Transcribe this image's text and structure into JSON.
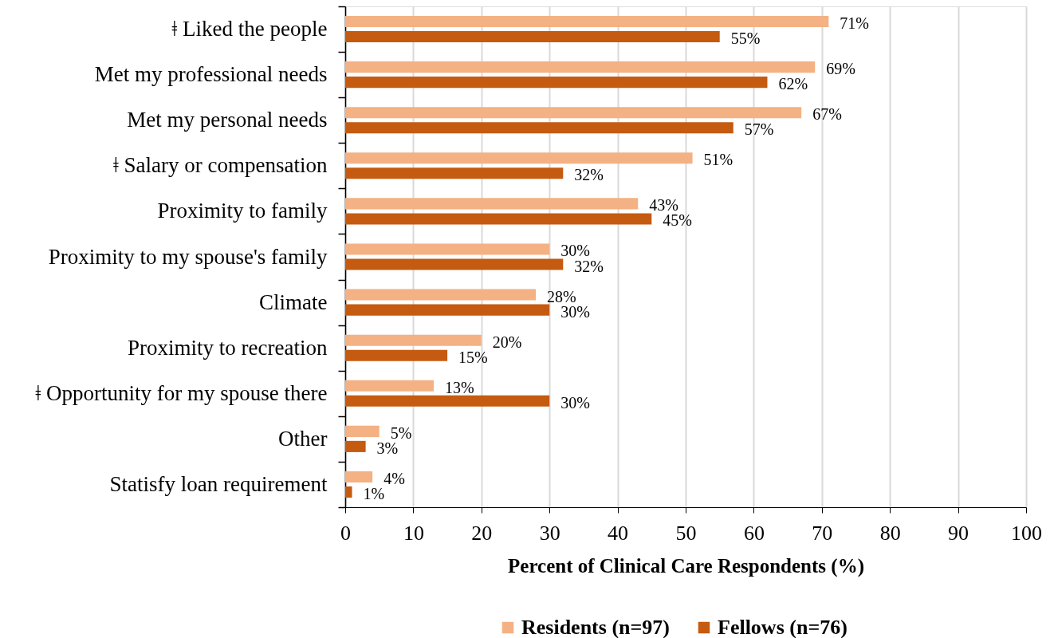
{
  "chart_data": {
    "type": "bar",
    "orientation": "horizontal",
    "categories": [
      "ǂ Liked the people",
      "Met my professional needs",
      "Met my personal needs",
      "ǂ Salary or compensation",
      "Proximity to family",
      "Proximity to my spouse's family",
      "Climate",
      "Proximity to recreation",
      "ǂ Opportunity for my spouse there",
      "Other",
      "Statisfy loan requirement"
    ],
    "series": [
      {
        "name": "Residents (n=97)",
        "color": "#f4b183",
        "values": [
          71,
          69,
          67,
          51,
          43,
          30,
          28,
          20,
          13,
          5,
          4
        ],
        "value_labels": [
          "71%",
          "69%",
          "67%",
          "51%",
          "43%",
          "30%",
          "28%",
          "20%",
          "13%",
          "5%",
          "4%"
        ]
      },
      {
        "name": "Fellows (n=76)",
        "color": "#c55a11",
        "values": [
          55,
          62,
          57,
          32,
          45,
          32,
          30,
          15,
          30,
          3,
          1
        ],
        "value_labels": [
          "55%",
          "62%",
          "57%",
          "32%",
          "45%",
          "32%",
          "30%",
          "15%",
          "30%",
          "3%",
          "1%"
        ]
      }
    ],
    "xlabel": "Percent of Clinical Care Respondents (%)",
    "xlim": [
      0,
      100
    ],
    "xticks": [
      0,
      10,
      20,
      30,
      40,
      50,
      60,
      70,
      80,
      90,
      100
    ],
    "grid": "x",
    "legend": "bottom"
  }
}
